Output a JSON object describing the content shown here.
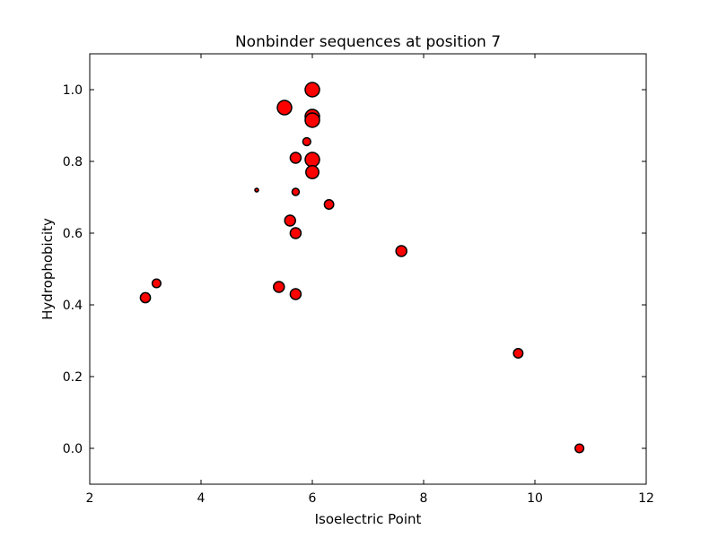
{
  "chart_data": {
    "type": "scatter",
    "title": "Nonbinder sequences at position 7",
    "xlabel": "Isoelectric Point",
    "ylabel": "Hydrophobicity",
    "xlim": [
      2,
      12
    ],
    "ylim": [
      -0.1,
      1.1
    ],
    "xticks": [
      2,
      4,
      6,
      8,
      10,
      12
    ],
    "xtick_labels": [
      "2",
      "4",
      "6",
      "8",
      "10",
      "12"
    ],
    "yticks": [
      0.0,
      0.2,
      0.4,
      0.6,
      0.8,
      1.0
    ],
    "ytick_labels": [
      "0.0",
      "0.2",
      "0.4",
      "0.6",
      "0.8",
      "1.0"
    ],
    "grid": false,
    "marker_color": "#ff0000",
    "marker_edge_color": "#000000",
    "points": [
      {
        "x": 6.0,
        "y": 1.0,
        "s": 2.0
      },
      {
        "x": 5.5,
        "y": 0.95,
        "s": 2.0
      },
      {
        "x": 6.0,
        "y": 0.925,
        "s": 2.0
      },
      {
        "x": 6.0,
        "y": 0.915,
        "s": 2.0
      },
      {
        "x": 5.9,
        "y": 0.855,
        "s": 1.1
      },
      {
        "x": 5.7,
        "y": 0.81,
        "s": 1.5
      },
      {
        "x": 6.0,
        "y": 0.805,
        "s": 2.0
      },
      {
        "x": 6.0,
        "y": 0.77,
        "s": 1.8
      },
      {
        "x": 5.0,
        "y": 0.72,
        "s": 0.5
      },
      {
        "x": 5.7,
        "y": 0.715,
        "s": 1.0
      },
      {
        "x": 6.3,
        "y": 0.68,
        "s": 1.3
      },
      {
        "x": 5.6,
        "y": 0.635,
        "s": 1.5
      },
      {
        "x": 5.7,
        "y": 0.6,
        "s": 1.5
      },
      {
        "x": 7.6,
        "y": 0.55,
        "s": 1.5
      },
      {
        "x": 3.2,
        "y": 0.46,
        "s": 1.2
      },
      {
        "x": 5.4,
        "y": 0.45,
        "s": 1.5
      },
      {
        "x": 5.7,
        "y": 0.43,
        "s": 1.5
      },
      {
        "x": 3.0,
        "y": 0.42,
        "s": 1.4
      },
      {
        "x": 9.7,
        "y": 0.265,
        "s": 1.3
      },
      {
        "x": 10.8,
        "y": 0.0,
        "s": 1.2
      }
    ]
  }
}
